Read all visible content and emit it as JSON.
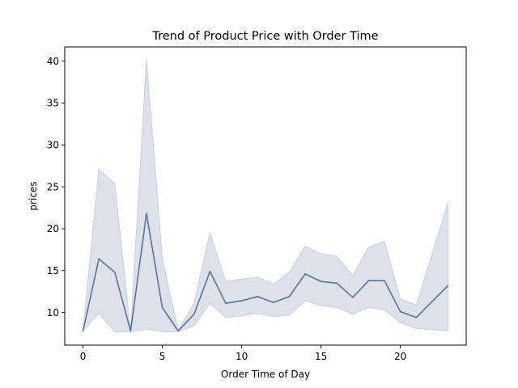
{
  "chart_data": {
    "type": "line",
    "title": "Trend of Product Price with Order Time",
    "xlabel": "Order Time of Day",
    "ylabel": "prices",
    "xlim": [
      -1.15,
      24.15
    ],
    "ylim": [
      6.1,
      41.7
    ],
    "xticks": [
      0,
      5,
      10,
      15,
      20
    ],
    "yticks": [
      10,
      15,
      20,
      25,
      30,
      35,
      40
    ],
    "grid": false,
    "line_color": "#5a7397",
    "band_color": "#c8d0dd",
    "series": [
      {
        "x": [
          0,
          1,
          2,
          3,
          4,
          5,
          6,
          7,
          8,
          9,
          10,
          11,
          12,
          13,
          14,
          15,
          16,
          17,
          18,
          19,
          20,
          21,
          23
        ],
        "values": [
          7.8,
          16.4,
          14.8,
          7.8,
          21.8,
          10.6,
          7.8,
          9.8,
          14.9,
          11.1,
          11.4,
          11.9,
          11.2,
          11.9,
          14.6,
          13.7,
          13.5,
          11.8,
          13.8,
          13.8,
          10.1,
          9.4,
          13.2
        ],
        "ci_lower": [
          7.8,
          9.9,
          7.7,
          7.7,
          8.0,
          7.7,
          7.7,
          8.4,
          11.1,
          9.4,
          9.6,
          9.9,
          9.5,
          9.7,
          11.4,
          10.8,
          10.6,
          9.8,
          10.6,
          10.3,
          8.8,
          8.1,
          7.8
        ],
        "ci_upper": [
          7.8,
          27.1,
          25.4,
          7.9,
          40.2,
          16.4,
          7.9,
          11.1,
          19.5,
          13.7,
          14.0,
          14.2,
          13.4,
          14.8,
          17.9,
          17.0,
          16.7,
          14.4,
          17.8,
          18.5,
          11.6,
          10.9,
          23.1
        ]
      }
    ]
  }
}
